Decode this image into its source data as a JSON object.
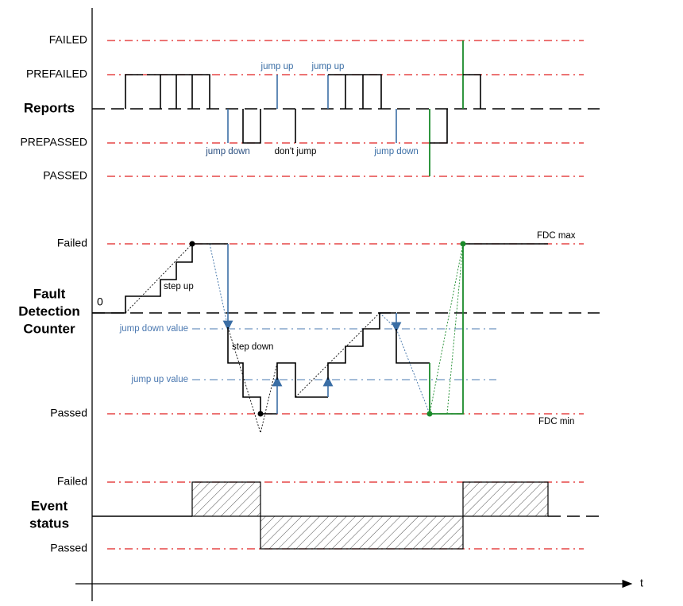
{
  "reports": {
    "title": "Reports",
    "levels": [
      "FAILED",
      "PREFAILED",
      "PREPASSED",
      "PASSED"
    ],
    "annotations": [
      "jump up",
      "jump up",
      "jump down",
      "don't jump",
      "jump down"
    ]
  },
  "fault_detection_counter": {
    "title_lines": [
      "Fault",
      "Detection",
      "Counter"
    ],
    "levels": [
      "Failed",
      "Passed"
    ],
    "zero": "0",
    "annotations": [
      "step up",
      "step down",
      "jump down value",
      "jump up value"
    ],
    "fdc_max": "FDC max",
    "fdc_min": "FDC min"
  },
  "event_status": {
    "title_lines": [
      "Event",
      "status"
    ],
    "levels": [
      "Failed",
      "Passed"
    ]
  },
  "time_axis": "t"
}
